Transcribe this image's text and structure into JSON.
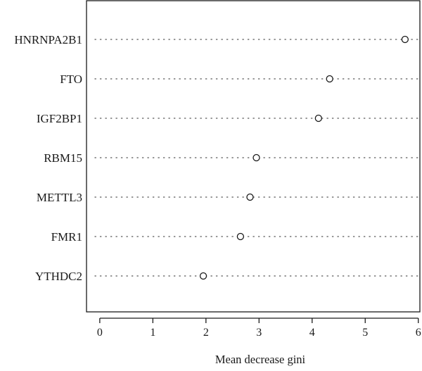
{
  "chart_data": {
    "type": "scatter",
    "title": "",
    "xlabel": "Mean decrease gini",
    "ylabel": "",
    "xlim": [
      -0.25,
      6.03
    ],
    "xticks": [
      "0",
      "1",
      "2",
      "3",
      "4",
      "5",
      "6"
    ],
    "xtick_values": [
      0,
      1,
      2,
      3,
      4,
      5,
      6
    ],
    "grid": "dotted horizontal guide line per category",
    "marker": "open-circle",
    "categories": [
      "HNRNPA2B1",
      "FTO",
      "IGF2BP1",
      "RBM15",
      "METTL3",
      "FMR1",
      "YTHDC2"
    ],
    "values": [
      5.75,
      4.33,
      4.12,
      2.95,
      2.83,
      2.65,
      1.95
    ],
    "colors": {
      "frame": "#1a1a1a",
      "guide": "#555555",
      "marker": "#1a1a1a",
      "background": "#ffffff"
    }
  }
}
